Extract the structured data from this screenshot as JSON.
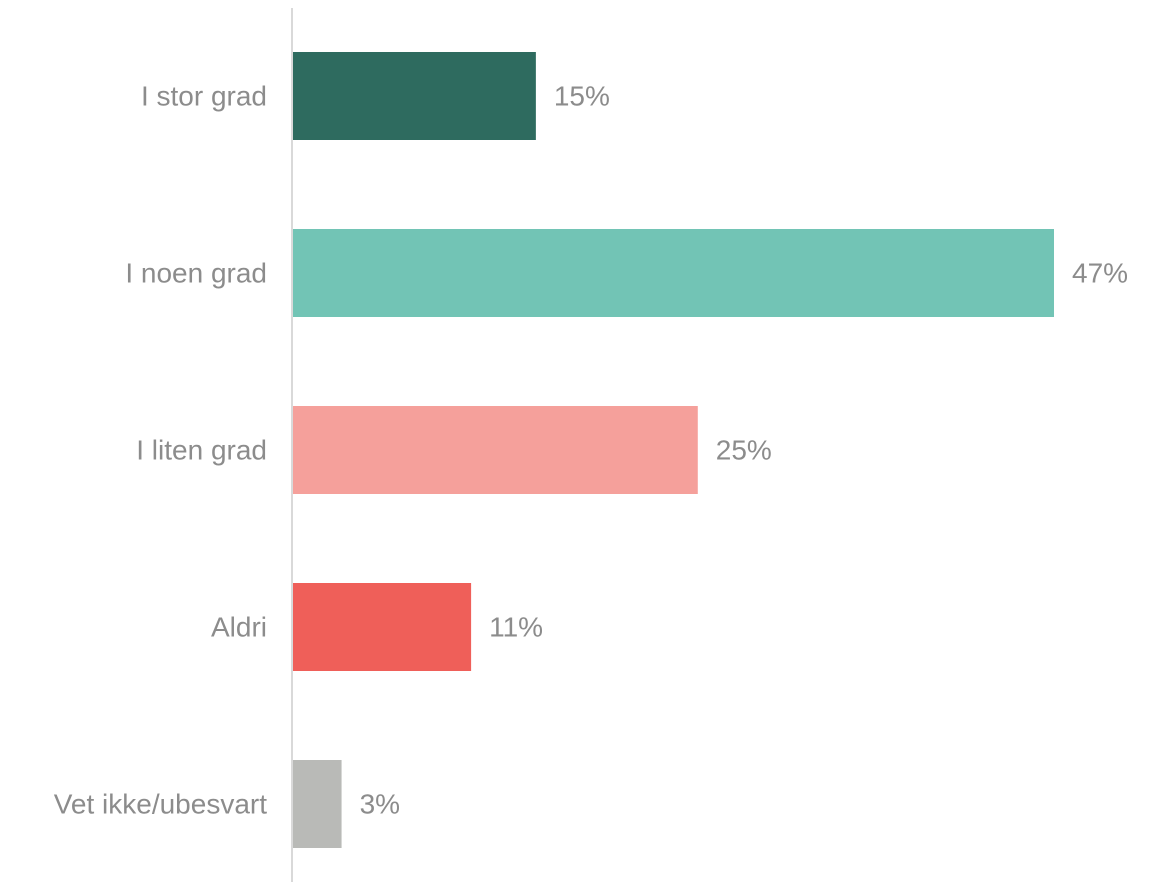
{
  "chart_data": {
    "type": "bar",
    "orientation": "horizontal",
    "title": "",
    "xlabel": "",
    "ylabel": "",
    "value_format": "percent",
    "categories": [
      "I stor grad",
      "I noen grad",
      "I liten grad",
      "Aldri",
      "Vet ikke/ubesvart"
    ],
    "values": [
      15,
      47,
      25,
      11,
      3
    ],
    "value_labels": [
      "15%",
      "47%",
      "25%",
      "11%",
      "3%"
    ],
    "colors": [
      "#2e6b5f",
      "#72c4b5",
      "#f5a09b",
      "#ef5f59",
      "#b9bab7"
    ],
    "xlim": [
      0,
      47
    ],
    "grid": false,
    "legend": "none"
  }
}
